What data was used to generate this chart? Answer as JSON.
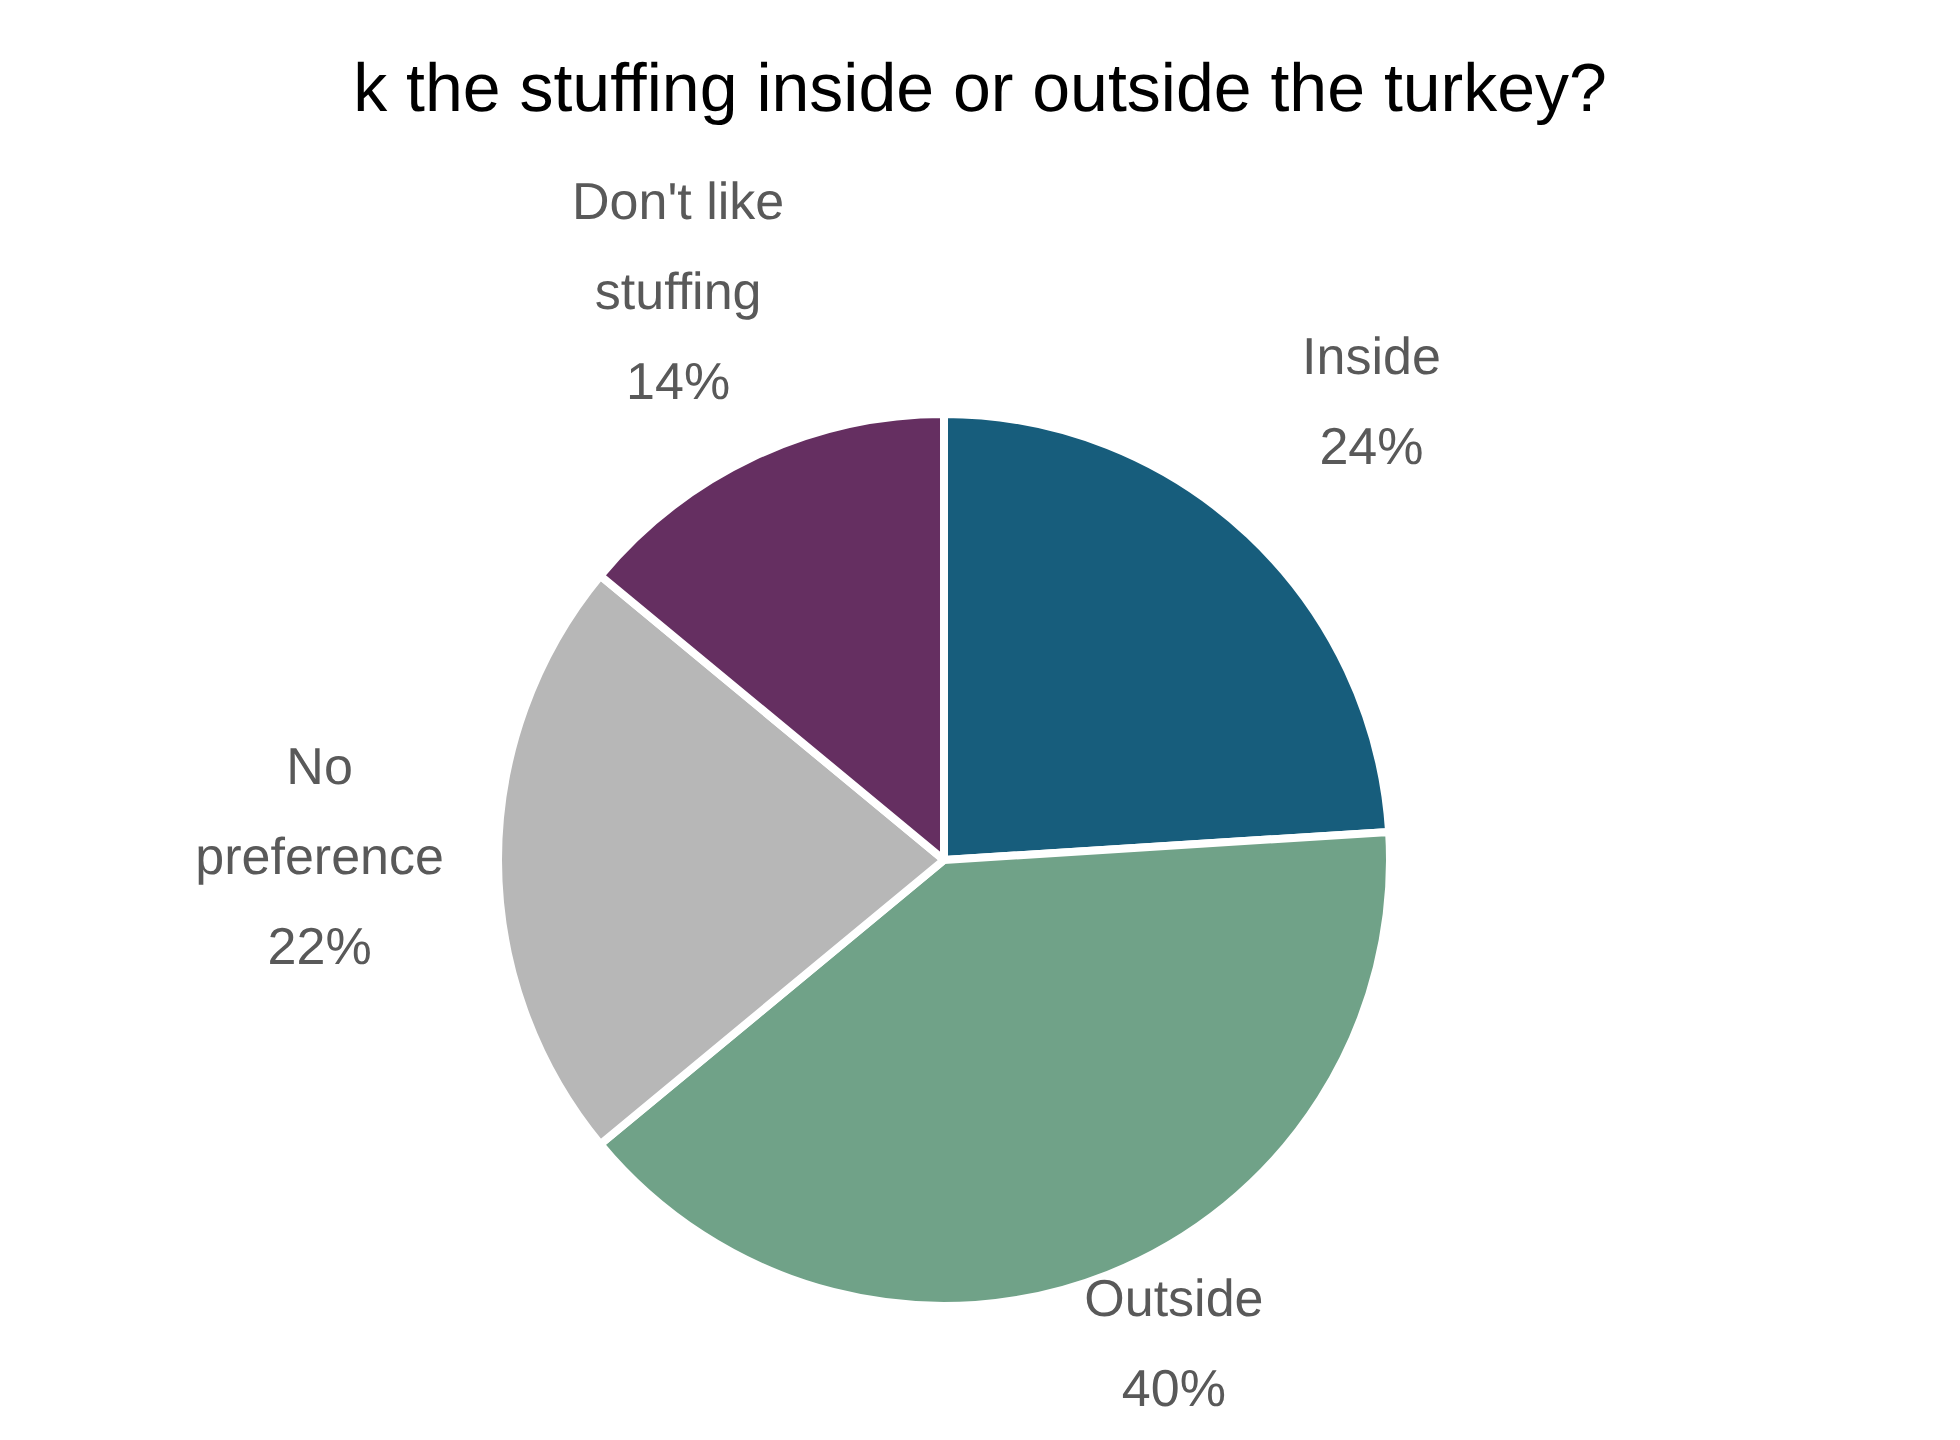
{
  "chart_data": {
    "type": "pie",
    "title": "k the stuffing inside or outside the turkey?",
    "categories": [
      "Inside",
      "Outside",
      "No preference",
      "Don't like stuffing"
    ],
    "values": [
      24,
      40,
      22,
      14
    ],
    "value_labels": [
      "24%",
      "40%",
      "22%",
      "14%"
    ],
    "colors": [
      "#175d7c",
      "#70a288",
      "#b7b7b7",
      "#652f61"
    ]
  }
}
